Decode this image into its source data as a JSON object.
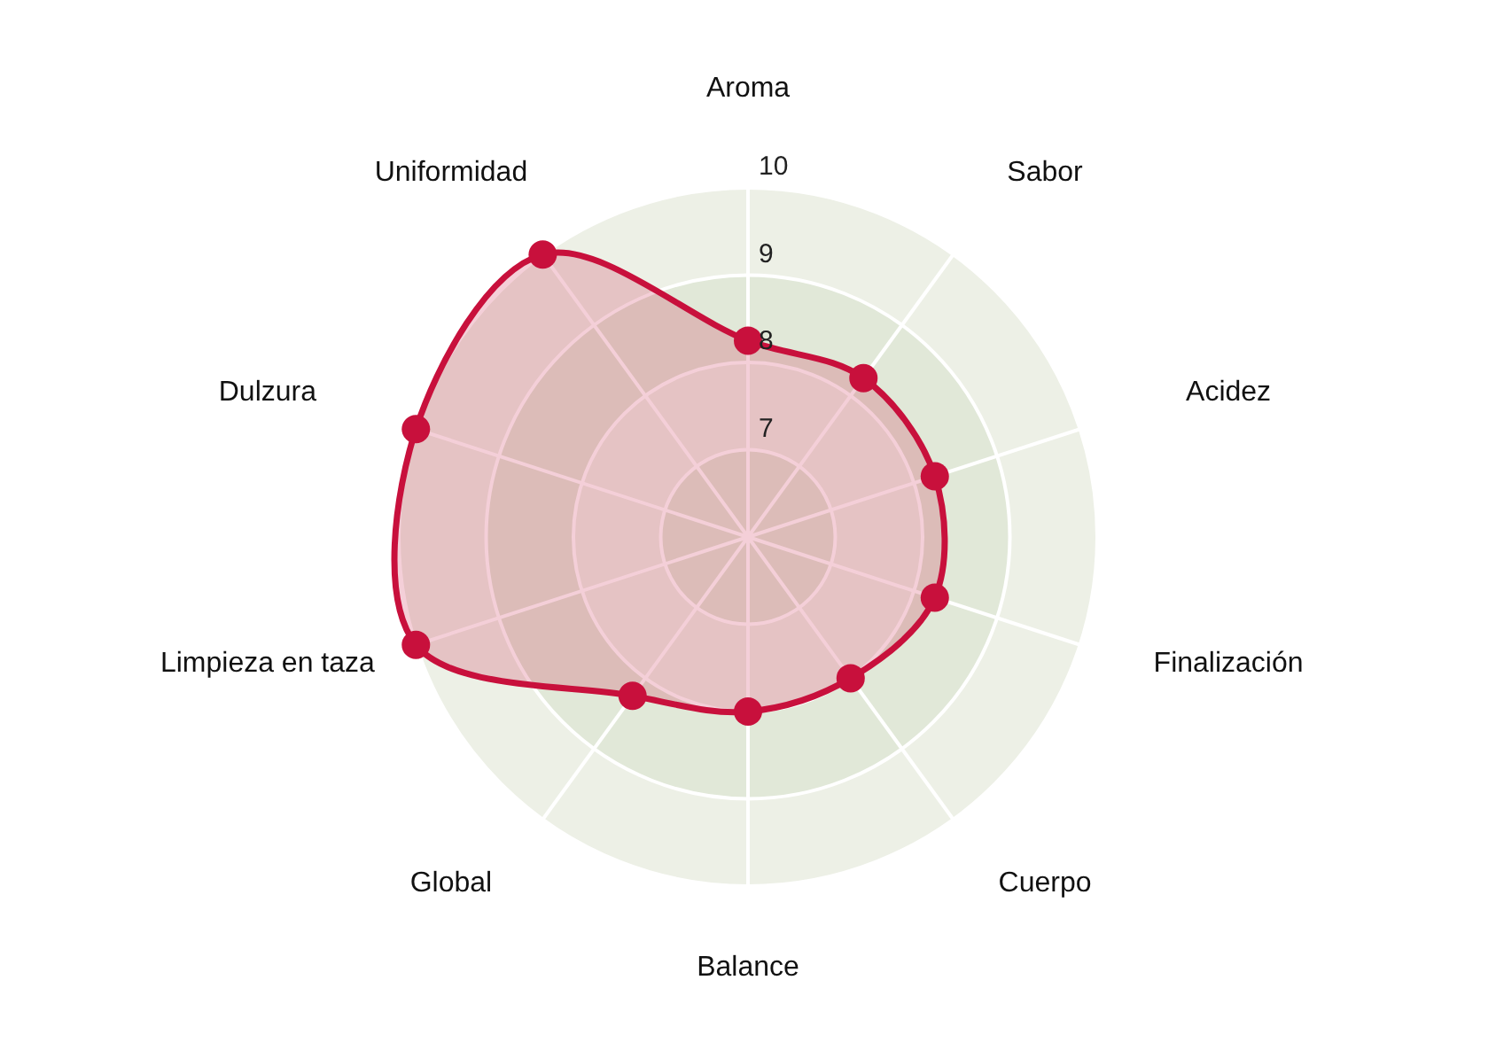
{
  "chart_data": {
    "type": "radar",
    "categories": [
      "Aroma",
      "Sabor",
      "Acidez",
      "Finalización",
      "Cuerpo",
      "Balance",
      "Global",
      "Limpieza en taza",
      "Dulzura",
      "Uniformidad"
    ],
    "series": [
      {
        "color": "#c8103c",
        "values": [
          8.25,
          8.25,
          8.25,
          8.25,
          8,
          8,
          8.25,
          10,
          10,
          10
        ]
      }
    ],
    "ylim": [
      6,
      10
    ],
    "yticks": [
      7,
      8,
      9,
      10
    ],
    "grid": true,
    "marker": "circle"
  }
}
